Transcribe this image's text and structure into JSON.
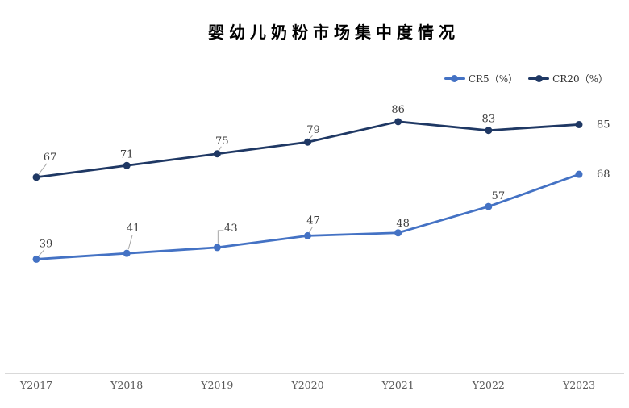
{
  "title": "婴幼儿奶粉市场集中度情况",
  "legend": {
    "items": [
      {
        "label": "CR5（%）",
        "color": "#4472C4"
      },
      {
        "label": "CR20（%）",
        "color": "#1F3864"
      }
    ]
  },
  "chart_data": {
    "type": "line",
    "title": "婴幼儿奶粉市场集中度情况",
    "categories": [
      "Y2017",
      "Y2018",
      "Y2019",
      "Y2020",
      "Y2021",
      "Y2022",
      "Y2023"
    ],
    "series": [
      {
        "name": "CR5（%）",
        "color": "#4472C4",
        "values": [
          39,
          41,
          43,
          47,
          48,
          57,
          68
        ]
      },
      {
        "name": "CR20（%）",
        "color": "#1F3864",
        "values": [
          67,
          71,
          75,
          79,
          86,
          83,
          85
        ]
      }
    ],
    "xlabel": "",
    "ylabel": "",
    "ylim": [
      0,
      100
    ],
    "grid": false,
    "y_axis_visible": false,
    "data_labels": true,
    "legend_position": "top-right"
  },
  "colors": {
    "background": "#FFFFFF",
    "data_label": "#404040",
    "axis_label": "#595959",
    "axis_line": "#D9D9D9",
    "leader_line": "#A6A6A6"
  }
}
